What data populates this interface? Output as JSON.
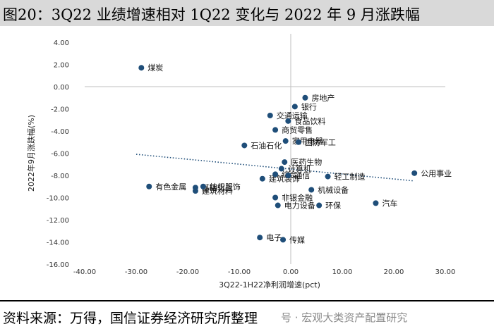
{
  "title": "图20：3Q22 业绩增速相对 1Q22 变化与 2022 年 9 月涨跌幅",
  "source": "资料来源：万得，国信证券经济研究所整理",
  "watermark": "号 · 宏观大类资产配置研究",
  "chart_data": {
    "type": "scatter",
    "xlabel": "3Q22-1H22净利润增速(pct)",
    "ylabel": "2022年9月涨跌幅(%)",
    "xlim": [
      -40,
      30
    ],
    "ylim": [
      -16,
      4
    ],
    "x_ticks": [
      "-40.00",
      "-30.00",
      "-20.00",
      "-10.00",
      "0.00",
      "10.00",
      "20.00",
      "30.00"
    ],
    "y_ticks": [
      "4.00",
      "2.00",
      "0.00",
      "-2.00",
      "-4.00",
      "-6.00",
      "-8.00",
      "-10.00",
      "-12.00",
      "-14.00",
      "-16.00"
    ],
    "grid": false,
    "color": "#1f4e79",
    "trendline": {
      "style": "dotted",
      "from": [
        -30,
        -6.1
      ],
      "to": [
        24,
        -8.5
      ]
    },
    "points": [
      {
        "label": "煤炭",
        "x": -29.0,
        "y": 1.7
      },
      {
        "label": "房地产",
        "x": 2.8,
        "y": -1.0
      },
      {
        "label": "银行",
        "x": 0.8,
        "y": -1.8
      },
      {
        "label": "交通运输",
        "x": -4.0,
        "y": -2.6
      },
      {
        "label": "食品饮料",
        "x": -0.5,
        "y": -3.1
      },
      {
        "label": "商贸零售",
        "x": -3.0,
        "y": -3.9
      },
      {
        "label": "家用电器",
        "x": -1.0,
        "y": -4.9
      },
      {
        "label": "国防军工",
        "x": 1.5,
        "y": -5.0
      },
      {
        "label": "石油石化",
        "x": -9.0,
        "y": -5.3
      },
      {
        "label": "医药生物",
        "x": -1.2,
        "y": -6.8
      },
      {
        "label": "建筑装饰",
        "x": -5.5,
        "y": -8.3
      },
      {
        "label": "综合",
        "x": -3.0,
        "y": -7.9
      },
      {
        "label": "计算机",
        "x": -1.8,
        "y": -7.4
      },
      {
        "label": "通信",
        "x": -0.5,
        "y": -8.0
      },
      {
        "label": "轻工制造",
        "x": 7.2,
        "y": -8.1
      },
      {
        "label": "公用事业",
        "x": 24.0,
        "y": -7.8
      },
      {
        "label": "有色金属",
        "x": -27.5,
        "y": -9.0
      },
      {
        "label": "基础化工",
        "x": -18.5,
        "y": -9.1
      },
      {
        "label": "建筑材料",
        "x": -18.5,
        "y": -9.4
      },
      {
        "label": "纺织服饰",
        "x": -17.0,
        "y": -9.0
      },
      {
        "label": "机械设备",
        "x": 4.0,
        "y": -9.3
      },
      {
        "label": "非银金融",
        "x": -3.0,
        "y": -10.0
      },
      {
        "label": "汽车",
        "x": 16.5,
        "y": -10.5
      },
      {
        "label": "电力设备",
        "x": -2.5,
        "y": -10.7
      },
      {
        "label": "环保",
        "x": 5.5,
        "y": -10.7
      },
      {
        "label": "电子",
        "x": -6.0,
        "y": -13.6
      },
      {
        "label": "传媒",
        "x": -1.5,
        "y": -13.8
      }
    ]
  }
}
